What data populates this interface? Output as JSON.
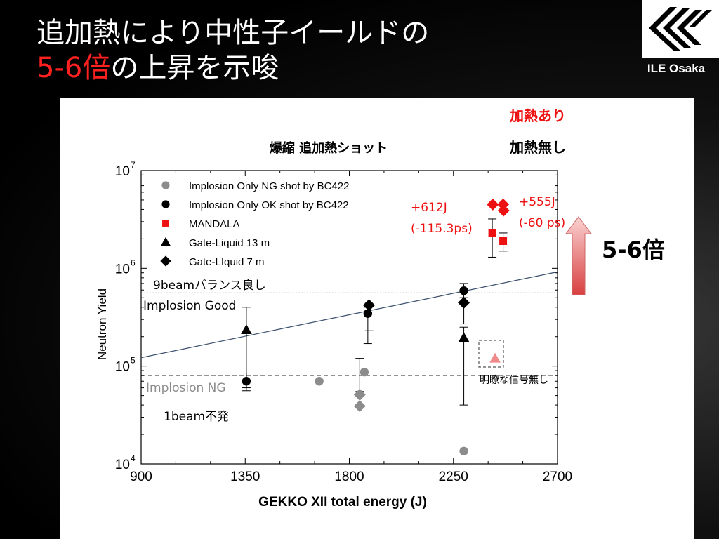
{
  "slide": {
    "title_line1": "追加熱により中性子イールドの",
    "title_line2_red": "5-6倍",
    "title_line2_rest": "の上昇を示唆",
    "logo_text": "ILE Osaka"
  },
  "annotations": {
    "heating_yes": "加熱あり",
    "heating_no": "加熱無し",
    "header_left": "爆縮  追加熱ショット",
    "label_612": "+612J",
    "label_612b": "(-115.3ps)",
    "label_555": "+555J",
    "label_555b": "(-60 ps)",
    "factor": "5-6倍",
    "nine_beam": "9beamバランス良し",
    "implosion_good": "Implosion Good",
    "implosion_ng": "Implosion NG",
    "one_beam": "1beam不発",
    "no_signal": "明瞭な信号無し"
  },
  "colors": {
    "gray": "#8c8c8c",
    "black": "#000000",
    "red": "#ee1111",
    "pink": "#f08a8a",
    "fit": "#3a4e6e"
  },
  "chart_data": {
    "type": "scatter",
    "xlabel": "GEKKO XII total energy (J)",
    "ylabel": "Neutron Yield",
    "xlim": [
      900,
      2700
    ],
    "ylim": [
      10000,
      10000000
    ],
    "yscale": "log",
    "xticks": [
      "900",
      "1350",
      "1800",
      "2250",
      "2700"
    ],
    "yticks": [
      {
        "base": "10",
        "exp": "4",
        "value": 10000
      },
      {
        "base": "10",
        "exp": "5",
        "value": 100000
      },
      {
        "base": "10",
        "exp": "6",
        "value": 1000000
      },
      {
        "base": "10",
        "exp": "7",
        "value": 10000000
      }
    ],
    "legend_position": "top-left",
    "series": [
      {
        "name": "Implosion Only NG shot by BC422",
        "marker": "circle",
        "color": "#8c8c8c",
        "points": [
          {
            "x": 1670,
            "y": 70000
          },
          {
            "x": 1865,
            "y": 87000
          },
          {
            "x": 2295,
            "y": 13500
          }
        ]
      },
      {
        "name": "Implosion Only OK shot by BC422",
        "marker": "circle",
        "color": "#000000",
        "points": [
          {
            "x": 1355,
            "y": 70000,
            "lo": 56000,
            "hi": 85000
          },
          {
            "x": 1880,
            "y": 345000,
            "lo": 170000,
            "hi": 400000
          },
          {
            "x": 2295,
            "y": 590000,
            "lo": 500000,
            "hi": 700000
          }
        ]
      },
      {
        "name": "MANDALA",
        "marker": "square",
        "color": "#ee1111",
        "points": [
          {
            "x": 2418,
            "y": 2300000,
            "lo": 1300000,
            "hi": 3200000
          },
          {
            "x": 2465,
            "y": 1900000,
            "lo": 1500000,
            "hi": 2300000
          }
        ]
      },
      {
        "name": "Gate-Liquid 13 m",
        "marker": "triangle",
        "color": "#000000",
        "points": [
          {
            "x": 1355,
            "y": 235000,
            "lo": 60000,
            "hi": 400000
          },
          {
            "x": 2295,
            "y": 195000,
            "lo": 40000,
            "hi": 250000
          }
        ]
      },
      {
        "name": "Gate-LIquid 7 m",
        "marker": "diamond",
        "color": "#000000",
        "points": [
          {
            "x": 1885,
            "y": 420000,
            "lo": 230000,
            "hi": 450000
          },
          {
            "x": 2295,
            "y": 445000,
            "lo": 270000,
            "hi": 500000
          }
        ]
      }
    ],
    "extra_points": [
      {
        "marker": "diamond",
        "color": "#8c8c8c",
        "x": 1845,
        "y": 51000
      },
      {
        "marker": "diamond",
        "color": "#8c8c8c",
        "x": 1845,
        "y": 39000
      },
      {
        "marker": "diamond",
        "color": "#ee1111",
        "x": 2420,
        "y": 4500000
      },
      {
        "marker": "diamond",
        "color": "#ee1111",
        "x": 2465,
        "y": 4500000
      },
      {
        "marker": "diamond",
        "color": "#ee1111",
        "x": 2467,
        "y": 3900000
      },
      {
        "marker": "triangle",
        "color": "#f08a8a",
        "x": 2430,
        "y": 120000
      }
    ],
    "extra_errorbars": [
      {
        "x": 1845,
        "lo": 55000,
        "hi": 120000
      }
    ],
    "fit_line": {
      "x": [
        900,
        2700
      ],
      "y": [
        122000,
        920000
      ]
    },
    "reference_lines": [
      {
        "y": 560000,
        "style": "dotted"
      },
      {
        "y": 80000,
        "style": "dashed"
      }
    ]
  }
}
